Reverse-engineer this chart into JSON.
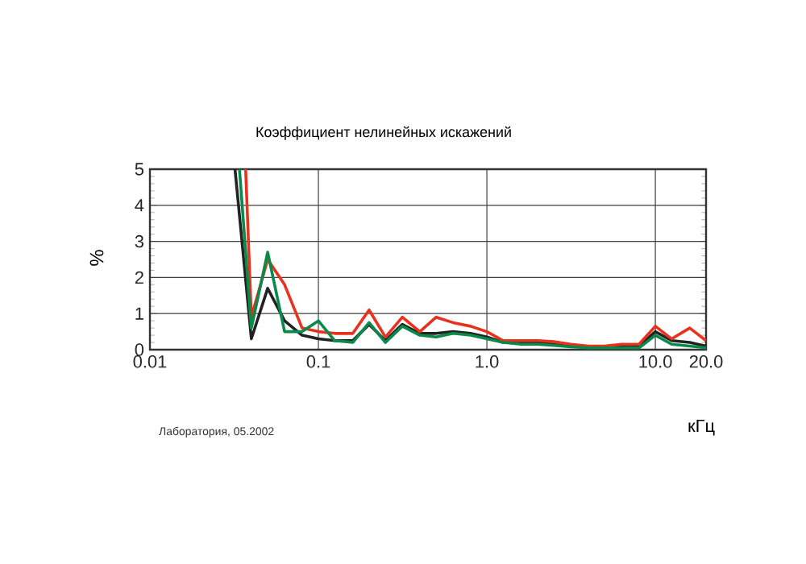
{
  "chart_data": {
    "type": "line",
    "title": "Коэффициент нелинейных искажений",
    "xlabel": "кГц",
    "ylabel": "%",
    "annotations": [
      "Лаборатория, 05.2002"
    ],
    "log": "x",
    "grid": true,
    "marker": "none",
    "line_style": "solid",
    "xlim": [
      0.01,
      20
    ],
    "ylim": [
      0,
      5
    ],
    "xticks": [
      0.01,
      0.1,
      {
        "value": 1,
        "label": "1.0"
      },
      {
        "value": 10,
        "label": "10.0"
      },
      {
        "value": 20,
        "label": "20.0"
      }
    ],
    "yticks": [
      0,
      1,
      2,
      3,
      4,
      5
    ],
    "series": [
      {
        "color": "#222222",
        "x": [
          0.032,
          0.04,
          0.05,
          0.063,
          0.08,
          0.1,
          0.125,
          0.16,
          0.2,
          0.25,
          0.315,
          0.4,
          0.5,
          0.63,
          0.8,
          1,
          1.25,
          1.6,
          2,
          2.5,
          3.15,
          4,
          5,
          6.3,
          8,
          10,
          12.5,
          16,
          20
        ],
        "values": [
          5,
          0.3,
          1.7,
          0.8,
          0.4,
          0.3,
          0.25,
          0.25,
          0.7,
          0.25,
          0.7,
          0.45,
          0.45,
          0.5,
          0.45,
          0.35,
          0.2,
          0.2,
          0.2,
          0.15,
          0.1,
          0.07,
          0.07,
          0.08,
          0.1,
          0.5,
          0.25,
          0.2,
          0.1
        ]
      },
      {
        "color": "#e8321e",
        "x": [
          0.037,
          0.04,
          0.05,
          0.063,
          0.08,
          0.1,
          0.125,
          0.16,
          0.2,
          0.25,
          0.315,
          0.4,
          0.5,
          0.63,
          0.8,
          1,
          1.25,
          1.6,
          2,
          2.5,
          3.15,
          4,
          5,
          6.3,
          8,
          10,
          12.5,
          16,
          20
        ],
        "values": [
          5,
          0.9,
          2.5,
          1.8,
          0.6,
          0.5,
          0.45,
          0.45,
          1.1,
          0.35,
          0.9,
          0.5,
          0.9,
          0.75,
          0.65,
          0.5,
          0.25,
          0.25,
          0.25,
          0.22,
          0.15,
          0.1,
          0.1,
          0.15,
          0.15,
          0.65,
          0.3,
          0.6,
          0.25
        ]
      },
      {
        "color": "#0a8a4a",
        "x": [
          0.034,
          0.04,
          0.05,
          0.063,
          0.08,
          0.1,
          0.125,
          0.16,
          0.2,
          0.25,
          0.315,
          0.4,
          0.5,
          0.63,
          0.8,
          1,
          1.25,
          1.6,
          2,
          2.5,
          3.15,
          4,
          5,
          6.3,
          8,
          10,
          12.5,
          16,
          20
        ],
        "values": [
          5,
          0.6,
          2.7,
          0.5,
          0.5,
          0.8,
          0.25,
          0.2,
          0.75,
          0.2,
          0.65,
          0.4,
          0.35,
          0.45,
          0.4,
          0.3,
          0.2,
          0.15,
          0.15,
          0.12,
          0.08,
          0.05,
          0.05,
          0.05,
          0.05,
          0.4,
          0.15,
          0.1,
          0.05
        ]
      }
    ]
  }
}
